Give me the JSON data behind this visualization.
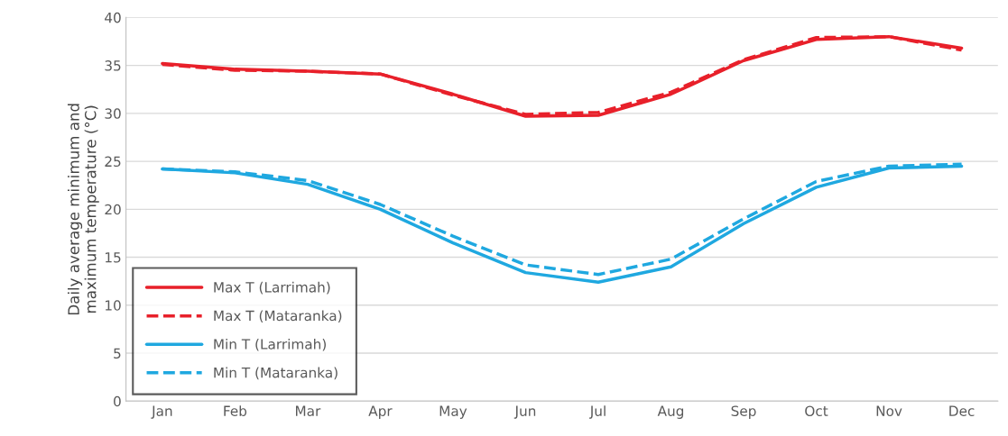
{
  "chart_data": {
    "type": "line",
    "ylabel": "Daily average minimum and\nmaximum temperature (°C)",
    "categories": [
      "Jan",
      "Feb",
      "Mar",
      "Apr",
      "May",
      "Jun",
      "Jul",
      "Aug",
      "Sep",
      "Oct",
      "Nov",
      "Dec"
    ],
    "series": [
      {
        "name": "Max T (Larrimah)",
        "color": "#e8202a",
        "line_style": "solid",
        "values": [
          35.2,
          34.6,
          34.4,
          34.1,
          32.0,
          29.7,
          29.8,
          32.0,
          35.5,
          37.7,
          38.0,
          36.8
        ]
      },
      {
        "name": "Max T (Mataranka)",
        "color": "#e8202a",
        "line_style": "dashed",
        "values": [
          35.1,
          34.5,
          34.4,
          34.1,
          31.9,
          29.9,
          30.1,
          32.2,
          35.6,
          37.9,
          38.0,
          36.6
        ]
      },
      {
        "name": "Min T (Larrimah)",
        "color": "#1fa8e0",
        "line_style": "solid",
        "values": [
          24.2,
          23.8,
          22.6,
          20.0,
          16.5,
          13.4,
          12.4,
          14.0,
          18.5,
          22.3,
          24.3,
          24.5
        ]
      },
      {
        "name": "Min T (Mataranka)",
        "color": "#1fa8e0",
        "line_style": "dashed",
        "values": [
          24.2,
          23.9,
          23.0,
          20.5,
          17.2,
          14.2,
          13.2,
          14.8,
          19.0,
          22.9,
          24.5,
          24.7
        ]
      }
    ],
    "ylim": [
      0,
      40
    ],
    "yticks": [
      0,
      5,
      10,
      15,
      20,
      25,
      30,
      35,
      40
    ],
    "grid": "y",
    "legend": "bottom left",
    "marker": "none"
  }
}
